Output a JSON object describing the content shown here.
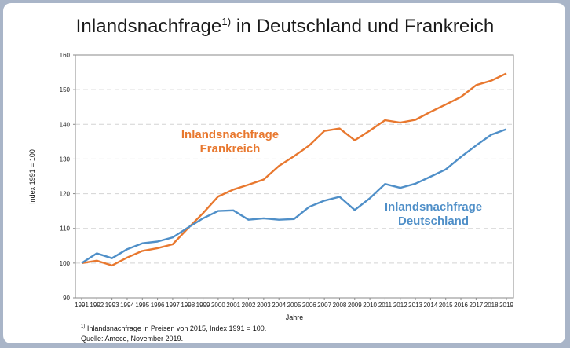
{
  "chart_data": {
    "type": "line",
    "title": "Inlandsnachfrage",
    "title_sup": "1)",
    "title_rest": " in Deutschland und Frankreich",
    "xlabel": "Jahre",
    "ylabel": "Index 1991 = 100",
    "ylim": [
      90,
      160
    ],
    "yticks": [
      90,
      100,
      110,
      120,
      130,
      140,
      150,
      160
    ],
    "grid": "horizontal dashed",
    "x": [
      1991,
      1992,
      1993,
      1994,
      1995,
      1996,
      1997,
      1998,
      1999,
      2000,
      2001,
      2002,
      2003,
      2004,
      2005,
      2006,
      2007,
      2008,
      2009,
      2010,
      2011,
      2012,
      2013,
      2014,
      2015,
      2016,
      2017,
      2018,
      2019
    ],
    "series": [
      {
        "name": "Inlandsnachfrage Frankreich",
        "label_lines": [
          "Inlandsnachfrage",
          "Frankreich"
        ],
        "color": "#e8782f",
        "values": [
          100,
          100.7,
          99.3,
          101.6,
          103.5,
          104.3,
          105.4,
          110,
          114.4,
          119.2,
          121.2,
          122.6,
          124.1,
          128,
          130.8,
          133.9,
          138.1,
          138.8,
          135.4,
          138.2,
          141.2,
          140.5,
          141.3,
          143.6,
          145.7,
          147.9,
          151.3,
          152.6,
          154.7
        ]
      },
      {
        "name": "Inlandsnachfrage Deutschland",
        "label_lines": [
          "Inlandsnachfrage",
          "Deutschland"
        ],
        "color": "#4f8fc8",
        "values": [
          100,
          102.8,
          101.4,
          104,
          105.7,
          106.2,
          107.4,
          110.2,
          112.9,
          115,
          115.2,
          112.5,
          112.9,
          112.5,
          112.7,
          116.2,
          118,
          119.1,
          115.3,
          118.7,
          122.8,
          121.7,
          122.9,
          124.9,
          127,
          130.6,
          133.9,
          137,
          138.6
        ]
      }
    ]
  },
  "footnotes": {
    "note1_mark": "1)",
    "note1_text": " Inlandsnachfrage in Preisen von 2015, Index 1991 = 100.",
    "note2": "Quelle: Ameco, November 2019."
  }
}
